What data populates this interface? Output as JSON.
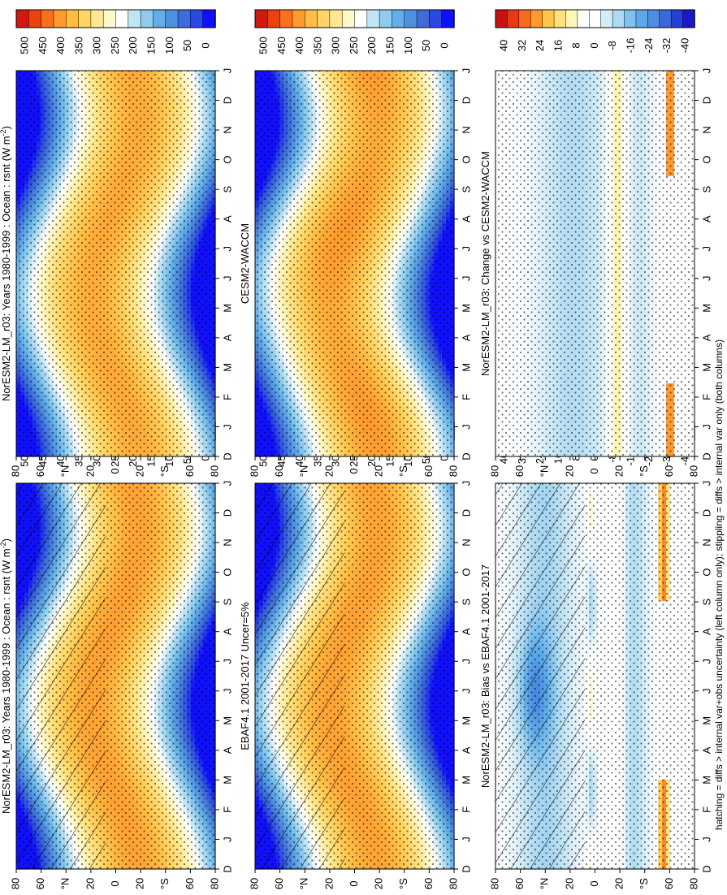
{
  "figure": {
    "footnote": "hatching = diffs > internal var+obs uncertainty (left column only); stippling = diffs > internal var only (both columns)"
  },
  "palettes": {
    "sequential": [
      "#1010ff",
      "#2a48e6",
      "#3d6cd9",
      "#4f8fdf",
      "#62aee8",
      "#8ecbee",
      "#bfe4f3",
      "#ffffff",
      "#fff8c8",
      "#ffe890",
      "#ffd666",
      "#ffbd44",
      "#ff9a2e",
      "#fb6f1c",
      "#ea4310",
      "#d41810"
    ],
    "diverging": [
      "#1c17c6",
      "#2540d6",
      "#3a67de",
      "#4b8ee2",
      "#5ba9e8",
      "#7fc2ee",
      "#aedaf3",
      "#d3ecf8",
      "#ffffff",
      "#ffffff",
      "#fff6b8",
      "#ffe27a",
      "#ffc44a",
      "#ff9a30",
      "#fa6a1e",
      "#e83a12",
      "#cc1010"
    ]
  },
  "chart_data": [
    {
      "type": "heatmap",
      "title": "NorESM2-LM_r03: Years 1980-1999 : Ocean : rsnt (W m",
      "title_superscript": "-2",
      "title_suffix": ")",
      "x": [
        "D",
        "J",
        "F",
        "M",
        "A",
        "M",
        "J",
        "J",
        "A",
        "S",
        "O",
        "N",
        "D",
        "J"
      ],
      "y": [
        "80",
        "60",
        "°N",
        "20",
        "0",
        "20",
        "°S",
        "60",
        "80"
      ],
      "colorbar": [
        "500",
        "450",
        "400",
        "350",
        "300",
        "250",
        "200",
        "150",
        "100",
        "50",
        "0"
      ],
      "palette": "sequential",
      "hatching": true,
      "stippling": true
    },
    {
      "type": "heatmap",
      "title": "NorESM2-LM_r03: Years 1980-1999 : Ocean : rsnt (W m",
      "title_superscript": "-2",
      "title_suffix": ")",
      "x": [
        "D",
        "J",
        "F",
        "M",
        "A",
        "M",
        "J",
        "J",
        "A",
        "S",
        "O",
        "N",
        "D",
        "J"
      ],
      "y": [
        "80",
        "60",
        "°N",
        "20",
        "0",
        "20",
        "°S",
        "60",
        "80"
      ],
      "colorbar": [
        "500",
        "450",
        "400",
        "350",
        "300",
        "250",
        "200",
        "150",
        "100",
        "50",
        "0"
      ],
      "palette": "sequential",
      "hatching": false,
      "stippling": true
    },
    {
      "type": "heatmap",
      "title": "EBAF4.1 2001-2017 Uncer=5%",
      "x": [
        "D",
        "J",
        "F",
        "M",
        "A",
        "M",
        "J",
        "J",
        "A",
        "S",
        "O",
        "N",
        "D",
        "J"
      ],
      "y": [
        "80",
        "60",
        "°N",
        "20",
        "0",
        "20",
        "°S",
        "60",
        "80"
      ],
      "colorbar": [
        "500",
        "450",
        "400",
        "350",
        "300",
        "250",
        "200",
        "150",
        "100",
        "50",
        "0"
      ],
      "palette": "sequential",
      "hatching": true,
      "stippling": true
    },
    {
      "type": "heatmap",
      "title": "CESM2-WACCM",
      "x": [
        "D",
        "J",
        "F",
        "M",
        "A",
        "M",
        "J",
        "J",
        "A",
        "S",
        "O",
        "N",
        "D",
        "J"
      ],
      "y": [
        "80",
        "60",
        "°N",
        "20",
        "0",
        "20",
        "°S",
        "60",
        "80"
      ],
      "colorbar": [
        "500",
        "450",
        "400",
        "350",
        "300",
        "250",
        "200",
        "150",
        "100",
        "50",
        "0"
      ],
      "palette": "sequential",
      "hatching": false,
      "stippling": true
    },
    {
      "type": "heatmap",
      "title": "NorESM2-LM_r03: Bias vs EBAF4.1 2001-2017",
      "x": [
        "D",
        "J",
        "F",
        "M",
        "A",
        "M",
        "J",
        "J",
        "A",
        "S",
        "O",
        "N",
        "D",
        "J"
      ],
      "y": [
        "80",
        "60",
        "°N",
        "20",
        "0",
        "20",
        "°S",
        "60",
        "80"
      ],
      "colorbar": [
        "40",
        "32",
        "24",
        "16",
        "8",
        "0",
        "-8",
        "-16",
        "-24",
        "-32",
        "-40"
      ],
      "palette": "diverging",
      "hatching": true,
      "stippling": true
    },
    {
      "type": "heatmap",
      "title": "NorESM2-LM_r03: Change vs CESM2-WACCM",
      "x": [
        "D",
        "J",
        "F",
        "M",
        "A",
        "M",
        "J",
        "J",
        "A",
        "S",
        "O",
        "N",
        "D",
        "J"
      ],
      "y": [
        "80",
        "60",
        "°N",
        "20",
        "0",
        "20",
        "°S",
        "60",
        "80"
      ],
      "colorbar": [
        "40",
        "32",
        "24",
        "16",
        "8",
        "0",
        "-8",
        "-16",
        "-24",
        "-32",
        "-40"
      ],
      "palette": "diverging",
      "hatching": false,
      "stippling": true
    }
  ]
}
